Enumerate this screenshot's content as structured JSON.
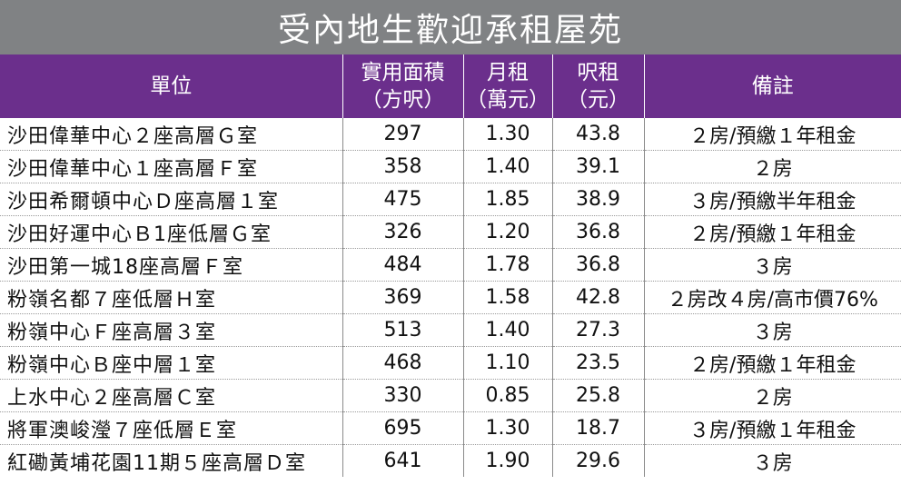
{
  "title": "受內地生歡迎承租屋苑",
  "headers": {
    "unit": "單位",
    "area_l1": "實用面積",
    "area_l2": "（方呎）",
    "rent_l1": "月租",
    "rent_l2": "（萬元）",
    "psf_l1": "呎租",
    "psf_l2": "（元）",
    "remark": "備註"
  },
  "rows": [
    {
      "unit": "沙田偉華中心２座高層Ｇ室",
      "area": "297",
      "rent": "1.30",
      "psf": "43.8",
      "remark": "２房/預繳１年租金"
    },
    {
      "unit": "沙田偉華中心１座高層Ｆ室",
      "area": "358",
      "rent": "1.40",
      "psf": "39.1",
      "remark": "２房"
    },
    {
      "unit": "沙田希爾頓中心Ｄ座高層１室",
      "area": "475",
      "rent": "1.85",
      "psf": "38.9",
      "remark": "３房/預繳半年租金"
    },
    {
      "unit": "沙田好運中心Ｂ1座低層Ｇ室",
      "area": "326",
      "rent": "1.20",
      "psf": "36.8",
      "remark": "２房/預繳１年租金"
    },
    {
      "unit": "沙田第一城18座高層Ｆ室",
      "area": "484",
      "rent": "1.78",
      "psf": "36.8",
      "remark": "３房"
    },
    {
      "unit": "粉嶺名都７座低層Ｈ室",
      "area": "369",
      "rent": "1.58",
      "psf": "42.8",
      "remark": "２房改４房/高市價76%"
    },
    {
      "unit": "粉嶺中心Ｆ座高層３室",
      "area": "513",
      "rent": "1.40",
      "psf": "27.3",
      "remark": "３房"
    },
    {
      "unit": "粉嶺中心Ｂ座中層１室",
      "area": "468",
      "rent": "1.10",
      "psf": "23.5",
      "remark": "２房/預繳１年租金"
    },
    {
      "unit": "上水中心２座高層Ｃ室",
      "area": "330",
      "rent": "0.85",
      "psf": "25.8",
      "remark": "２房"
    },
    {
      "unit": "將軍澳峻瀅７座低層Ｅ室",
      "area": "695",
      "rent": "1.30",
      "psf": "18.7",
      "remark": "３房/預繳１年租金"
    },
    {
      "unit": "紅磡黃埔花園11期５座高層Ｄ室",
      "area": "641",
      "rent": "1.90",
      "psf": "29.6",
      "remark": "３房"
    }
  ]
}
